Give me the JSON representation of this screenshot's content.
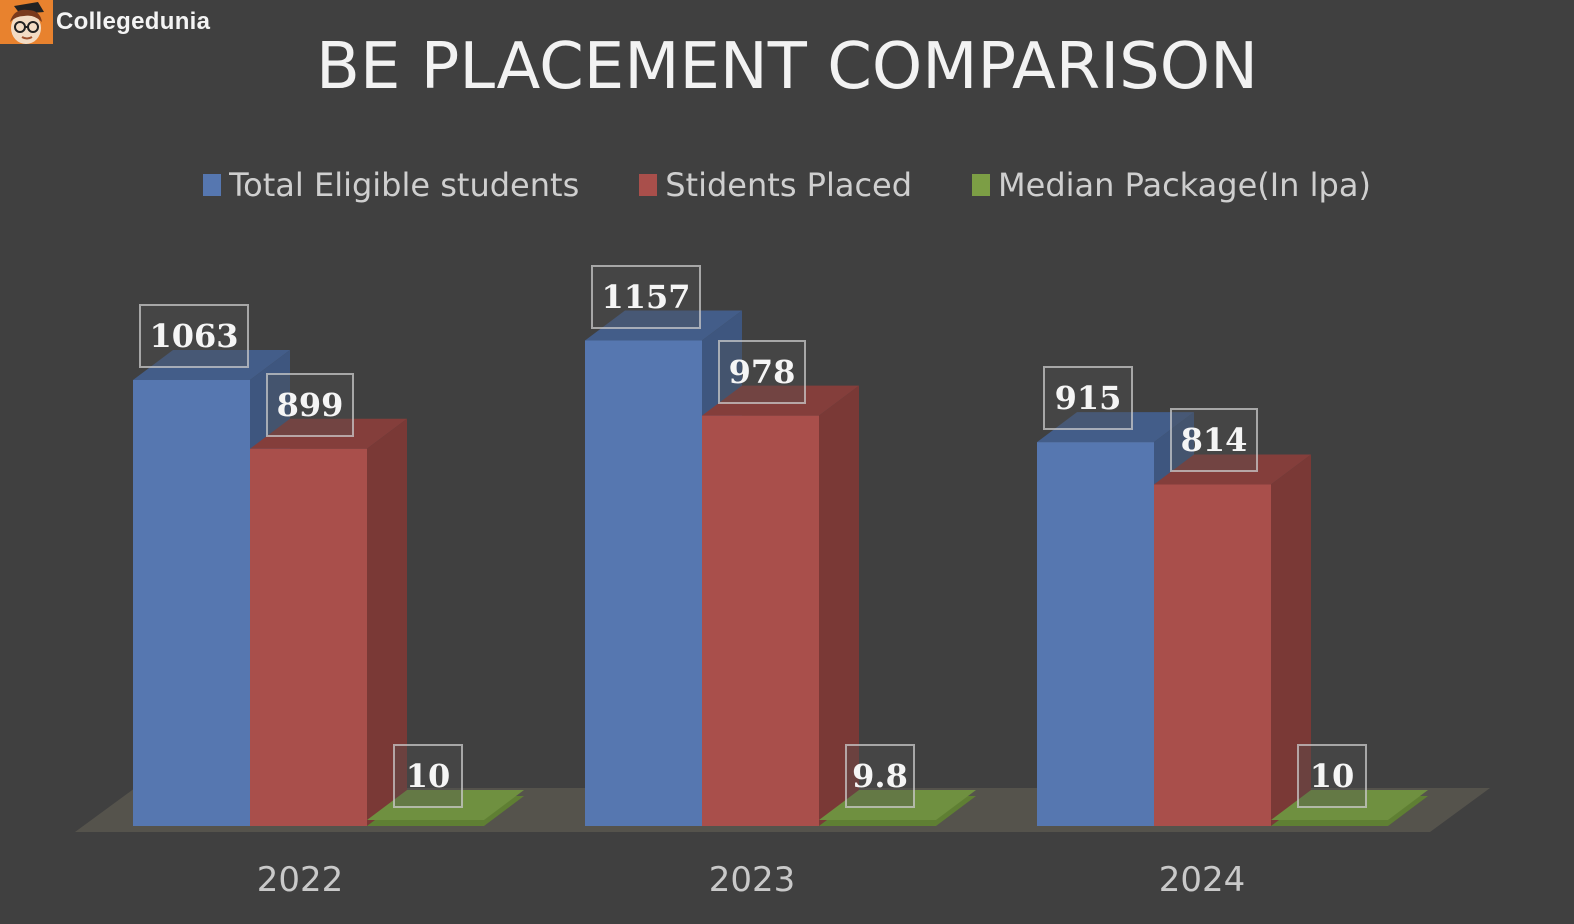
{
  "brand": {
    "name": "Collegedunia",
    "logo_color": "#e8822e"
  },
  "chart_data": {
    "type": "bar",
    "style": "3d-clustered-column",
    "title": "BE PLACEMENT COMPARISON",
    "categories": [
      "2022",
      "2023",
      "2024"
    ],
    "series": [
      {
        "name": "Total Eligible students",
        "color": "#5677b0",
        "values": [
          1063,
          1157,
          915
        ]
      },
      {
        "name": "Stidents Placed",
        "color": "#a94f4b",
        "values": [
          899,
          978,
          814
        ]
      },
      {
        "name": "Median Package(In lpa)",
        "color": "#6a8a3a",
        "values": [
          10,
          9.8,
          10
        ]
      }
    ],
    "data_labels": [
      [
        "1063",
        "899",
        "10"
      ],
      [
        "1157",
        "978",
        "9.8"
      ],
      [
        "915",
        "814",
        "10"
      ]
    ],
    "legend_position": "top",
    "grid": false,
    "xlabel": "",
    "ylabel": ""
  }
}
